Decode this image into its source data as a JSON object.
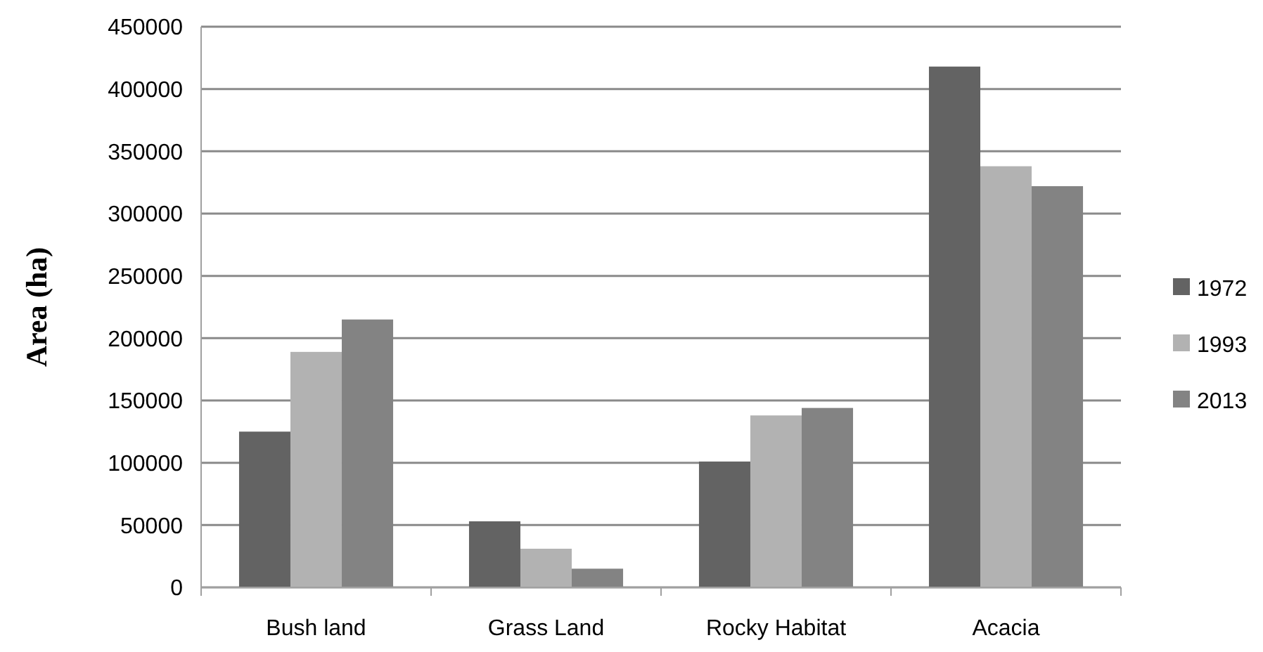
{
  "chart_data": {
    "type": "bar",
    "ylabel": "Area (ha)",
    "categories": [
      "Bush land",
      "Grass Land",
      "Rocky Habitat",
      "Acacia"
    ],
    "series": [
      {
        "name": "1972",
        "color": "#636363",
        "values": [
          125000,
          53000,
          101000,
          418000
        ]
      },
      {
        "name": "1993",
        "color": "#b2b2b2",
        "values": [
          189000,
          31000,
          138000,
          338000
        ]
      },
      {
        "name": "2013",
        "color": "#838383",
        "values": [
          215000,
          15000,
          144000,
          322000
        ]
      }
    ],
    "ylim": [
      0,
      450000
    ],
    "yticks": [
      0,
      50000,
      100000,
      150000,
      200000,
      250000,
      300000,
      350000,
      400000,
      450000
    ],
    "grid": "y",
    "legend": "right"
  }
}
